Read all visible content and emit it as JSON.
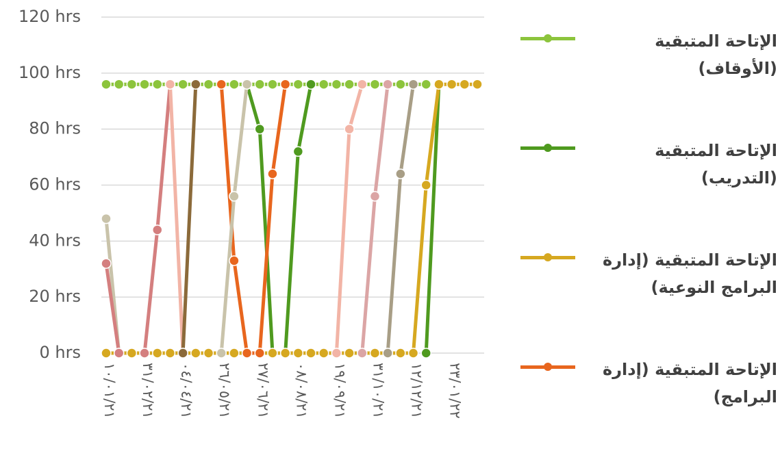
{
  "chart_data": {
    "type": "line",
    "categories": [
      "١٠/٠١/٢١",
      null,
      null,
      "٣١/٠٢/٢١",
      null,
      null,
      "٠٤/٠٤/٢١",
      null,
      null,
      "٢٦/٠٥/٢١",
      null,
      null,
      "٢٧/٠٦/٢١",
      null,
      null,
      "٠٨/٠٨/٢١",
      null,
      null,
      "١٩/٠٩/٢١",
      null,
      null,
      "٣١/١٠/٢١",
      null,
      null,
      "١٢/١٢/٢١",
      null,
      null,
      "٢٣/٠١/٢٢",
      null,
      null
    ],
    "ylim": [
      0,
      120
    ],
    "yticks": [
      {
        "value": 0,
        "label": "0 hrs"
      },
      {
        "value": 20,
        "label": "20 hrs"
      },
      {
        "value": 40,
        "label": "40 hrs"
      },
      {
        "value": 60,
        "label": "60 hrs"
      },
      {
        "value": 80,
        "label": "80 hrs"
      },
      {
        "value": 100,
        "label": "100 hrs"
      },
      {
        "value": 120,
        "label": "120 hrs"
      }
    ],
    "grid": true,
    "legend": "right",
    "series": [
      {
        "name": "الإتاحة المتبقية (الأوقاف)",
        "color": "#8cc43c",
        "values": [
          96,
          96,
          96,
          96,
          96,
          96,
          96,
          96,
          96,
          96,
          96,
          96,
          96,
          96,
          96,
          96,
          96,
          96,
          96,
          96,
          96,
          96,
          96,
          96,
          96,
          96,
          null,
          null,
          null,
          null
        ]
      },
      {
        "name": "الإتاحة المتبقية (التدريب)",
        "color": "#4f9a1f",
        "values": [
          null,
          null,
          null,
          null,
          null,
          null,
          null,
          null,
          null,
          null,
          null,
          96,
          80,
          0,
          0,
          72,
          96,
          null,
          null,
          null,
          null,
          null,
          null,
          null,
          null,
          0,
          96,
          null,
          null,
          null
        ]
      },
      {
        "name": "الإتاحة المتبقية (إدارة البرامج النوعية)",
        "color": "#d6a820",
        "values": [
          0,
          0,
          0,
          0,
          0,
          0,
          0,
          0,
          0,
          0,
          0,
          0,
          0,
          0,
          0,
          0,
          0,
          0,
          0,
          0,
          0,
          0,
          0,
          0,
          0,
          60,
          96,
          96,
          96,
          96
        ]
      },
      {
        "name": "الإتاحة المتبقية (إدارة البرامج)",
        "color": "#e8661e",
        "values": [
          null,
          null,
          null,
          null,
          null,
          null,
          null,
          null,
          null,
          96,
          33,
          0,
          0,
          64,
          96,
          null,
          null,
          null,
          null,
          null,
          null,
          null,
          null,
          null,
          null,
          null,
          null,
          null,
          null,
          null
        ]
      },
      {
        "color": "#c9c3aa",
        "values": [
          48,
          0,
          null,
          null,
          null,
          null,
          null,
          null,
          null,
          0,
          56,
          96,
          null,
          null,
          null,
          null,
          null,
          null,
          null,
          null,
          null,
          null,
          null,
          null,
          null,
          null,
          null,
          null,
          null,
          null
        ]
      },
      {
        "color": "#d47f7f",
        "values": [
          32,
          0,
          null,
          0,
          44,
          96,
          null,
          null,
          null,
          null,
          null,
          null,
          null,
          null,
          null,
          null,
          null,
          null,
          null,
          null,
          null,
          null,
          null,
          null,
          null,
          null,
          null,
          null,
          null,
          null
        ]
      },
      {
        "color": "#f2b4a6",
        "values": [
          null,
          null,
          null,
          null,
          null,
          96,
          0,
          null,
          null,
          null,
          null,
          null,
          null,
          null,
          null,
          null,
          null,
          null,
          0,
          80,
          96,
          null,
          null,
          null,
          null,
          null,
          null,
          null,
          null,
          null
        ]
      },
      {
        "color": "#8b6a3a",
        "values": [
          null,
          null,
          null,
          null,
          null,
          null,
          0,
          96,
          null,
          null,
          null,
          null,
          null,
          null,
          null,
          null,
          null,
          null,
          null,
          null,
          null,
          null,
          null,
          null,
          null,
          null,
          null,
          null,
          null,
          null
        ]
      },
      {
        "color": "#dba5a5",
        "values": [
          null,
          null,
          null,
          null,
          null,
          null,
          null,
          null,
          null,
          null,
          null,
          null,
          null,
          null,
          null,
          null,
          null,
          null,
          null,
          null,
          0,
          56,
          96,
          null,
          null,
          null,
          null,
          null,
          null,
          null
        ]
      },
      {
        "color": "#a89e86",
        "values": [
          null,
          null,
          null,
          null,
          null,
          null,
          null,
          null,
          null,
          null,
          null,
          null,
          null,
          null,
          null,
          null,
          null,
          null,
          null,
          null,
          null,
          null,
          0,
          64,
          96,
          null,
          null,
          null,
          null,
          null
        ]
      }
    ]
  }
}
